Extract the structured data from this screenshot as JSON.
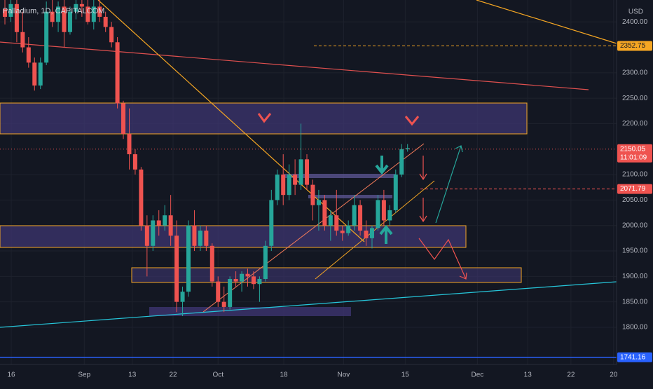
{
  "chart_data": {
    "type": "candlestick",
    "title": "Palladium, 1D, CAPITALCOM",
    "currency": "USD",
    "open": [
      2425,
      2410,
      2435,
      2380,
      2350,
      2320,
      2275,
      2320,
      2420,
      2400,
      2430,
      2380,
      2420,
      2435,
      2430,
      2400,
      2430,
      2410,
      2390,
      2360,
      2240,
      2180,
      2140,
      2110,
      2000,
      1960,
      2010,
      2000,
      2020,
      1980,
      1850,
      1870,
      2000,
      1960,
      1990,
      1960,
      1890,
      1850,
      1840,
      1895,
      1890,
      1905,
      1900,
      1885,
      1895,
      1960,
      2050,
      2100,
      2060,
      2100,
      2080,
      2130,
      2080,
      2040,
      2050,
      2000,
      2020,
      1990,
      1985,
      2000,
      2040,
      1990,
      1975,
      1995,
      2050,
      2010,
      2030,
      2100,
      2150
    ],
    "high": [
      2443,
      2443,
      2443,
      2420,
      2370,
      2330,
      2330,
      2440,
      2443,
      2440,
      2443,
      2430,
      2443,
      2443,
      2443,
      2443,
      2443,
      2420,
      2400,
      2370,
      2245,
      2230,
      2150,
      2115,
      2020,
      2020,
      2030,
      2040,
      2060,
      2010,
      1880,
      2010,
      2030,
      2000,
      2000,
      1965,
      1900,
      1880,
      1900,
      1910,
      1910,
      1915,
      1910,
      1900,
      1970,
      2070,
      2110,
      2140,
      2120,
      2130,
      2200,
      2140,
      2090,
      2070,
      2060,
      2030,
      2070,
      2000,
      2010,
      2060,
      2050,
      2010,
      2000,
      2060,
      2070,
      2040,
      2110,
      2160,
      2160
    ],
    "low": [
      2395,
      2400,
      2360,
      2340,
      2310,
      2265,
      2268,
      2315,
      2390,
      2380,
      2350,
      2375,
      2405,
      2410,
      2395,
      2385,
      2400,
      2380,
      2350,
      2230,
      2170,
      2110,
      2100,
      1990,
      1900,
      1950,
      1980,
      1990,
      1960,
      1830,
      1822,
      1860,
      1950,
      1950,
      1950,
      1880,
      1840,
      1830,
      1835,
      1880,
      1870,
      1880,
      1875,
      1850,
      1890,
      1950,
      2040,
      2040,
      2050,
      2060,
      2070,
      2070,
      2010,
      1990,
      1990,
      1970,
      1980,
      1970,
      1980,
      1990,
      1980,
      1960,
      1955,
      1990,
      2000,
      2000,
      2025,
      2095,
      2145
    ],
    "close": [
      2410,
      2435,
      2380,
      2350,
      2320,
      2275,
      2320,
      2420,
      2400,
      2430,
      2380,
      2420,
      2435,
      2430,
      2400,
      2430,
      2410,
      2390,
      2360,
      2240,
      2180,
      2140,
      2110,
      2000,
      1960,
      2010,
      2000,
      2020,
      1980,
      1850,
      1870,
      2000,
      1960,
      1990,
      1960,
      1890,
      1850,
      1840,
      1895,
      1890,
      1905,
      1900,
      1885,
      1895,
      1960,
      2050,
      2100,
      2060,
      2100,
      2080,
      2130,
      2080,
      2040,
      2050,
      2000,
      2020,
      1990,
      1985,
      2000,
      2040,
      1990,
      1975,
      1995,
      2050,
      2010,
      2030,
      2100,
      2150,
      2152
    ],
    "xlim": [
      -0.83,
      103.3
    ],
    "xticks": [
      {
        "value": 1.07,
        "label": "16"
      },
      {
        "value": 13.4,
        "label": "Sep"
      },
      {
        "value": 21.5,
        "label": "13"
      },
      {
        "value": 28.4,
        "label": "22"
      },
      {
        "value": 36,
        "label": "Oct"
      },
      {
        "value": 47.1,
        "label": "18"
      },
      {
        "value": 57.2,
        "label": "Nov"
      },
      {
        "value": 67.6,
        "label": "15"
      },
      {
        "value": 79.8,
        "label": "Dec"
      },
      {
        "value": 88.3,
        "label": "13"
      },
      {
        "value": 95.6,
        "label": "22"
      },
      {
        "value": 102.8,
        "label": "20"
      }
    ],
    "ylim": [
      1727,
      2443
    ],
    "yticks": [
      {
        "value": 2400,
        "label": "2400.00"
      },
      {
        "value": 2300,
        "label": "2300.00"
      },
      {
        "value": 2250,
        "label": "2250.00"
      },
      {
        "value": 2200,
        "label": "2200.00"
      },
      {
        "value": 2100,
        "label": "2100.00"
      },
      {
        "value": 2050,
        "label": "2050.00"
      },
      {
        "value": 2000,
        "label": "2000.00"
      },
      {
        "value": 1950,
        "label": "1950.00"
      },
      {
        "value": 1900,
        "label": "1900.00"
      },
      {
        "value": 1850,
        "label": "1850.00"
      },
      {
        "value": 1800,
        "label": "1800.00"
      }
    ],
    "up_color": "#26a69a",
    "down_color": "#ef5350",
    "grid": true,
    "price_lines": [
      {
        "value": 2352.75,
        "color": "#f5a623",
        "text_color": "#131722"
      },
      {
        "value": 2150.05,
        "color": "#ef5350",
        "text_color": "#ffffff",
        "countdown": "11:01:09"
      },
      {
        "value": 2071.79,
        "color": "#ef5350",
        "text_color": "#ffffff"
      },
      {
        "value": 1741.16,
        "color": "#2962ff",
        "text_color": "#ffffff"
      }
    ]
  }
}
